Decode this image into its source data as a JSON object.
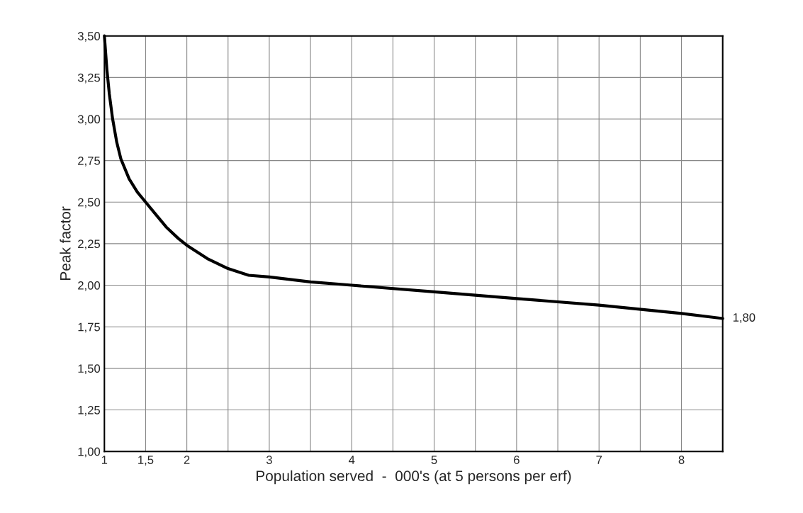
{
  "chart_data": {
    "type": "line",
    "xlabel": "Population served  -  000's (at 5 persons per erf)",
    "ylabel": "Peak factor",
    "x": [
      1,
      1.03,
      1.06,
      1.1,
      1.15,
      1.2,
      1.3,
      1.4,
      1.5,
      1.6,
      1.75,
      1.9,
      2,
      2.25,
      2.5,
      2.75,
      3,
      3.5,
      4,
      5,
      6,
      7,
      8,
      8.5
    ],
    "series": [
      {
        "color": "#000000",
        "values": [
          3.5,
          3.3,
          3.15,
          3.0,
          2.86,
          2.76,
          2.64,
          2.56,
          2.5,
          2.44,
          2.35,
          2.28,
          2.24,
          2.16,
          2.1,
          2.06,
          2.05,
          2.02,
          2.0,
          1.96,
          1.92,
          1.88,
          1.83,
          1.8
        ]
      }
    ],
    "xlim": [
      1,
      8.5
    ],
    "ylim": [
      1.0,
      3.5
    ],
    "xticks": [
      {
        "value": 1,
        "label": "1"
      },
      {
        "value": 1.5,
        "label": "1,5"
      },
      {
        "value": 2,
        "label": "2"
      },
      {
        "value": 2.5,
        "label": null
      },
      {
        "value": 3,
        "label": "3"
      },
      {
        "value": 3.5,
        "label": null
      },
      {
        "value": 4,
        "label": "4"
      },
      {
        "value": 4.5,
        "label": null
      },
      {
        "value": 5,
        "label": "5"
      },
      {
        "value": 5.5,
        "label": null
      },
      {
        "value": 6,
        "label": "6"
      },
      {
        "value": 6.5,
        "label": null
      },
      {
        "value": 7,
        "label": "7"
      },
      {
        "value": 7.5,
        "label": null
      },
      {
        "value": 8,
        "label": "8"
      }
    ],
    "yticks": [
      {
        "value": 1.0,
        "label": "1,00"
      },
      {
        "value": 1.25,
        "label": "1,25"
      },
      {
        "value": 1.5,
        "label": "1,50"
      },
      {
        "value": 1.75,
        "label": "1,75"
      },
      {
        "value": 2.0,
        "label": "2,00"
      },
      {
        "value": 2.25,
        "label": "2,25"
      },
      {
        "value": 2.5,
        "label": "2,50"
      },
      {
        "value": 2.75,
        "label": "2,75"
      },
      {
        "value": 3.0,
        "label": "3,00"
      },
      {
        "value": 3.25,
        "label": "3,25"
      },
      {
        "value": 3.5,
        "label": "3,50"
      }
    ],
    "grid": true,
    "annotations": [
      {
        "text": "1,80",
        "x": 8.5,
        "y": 1.8
      }
    ]
  }
}
